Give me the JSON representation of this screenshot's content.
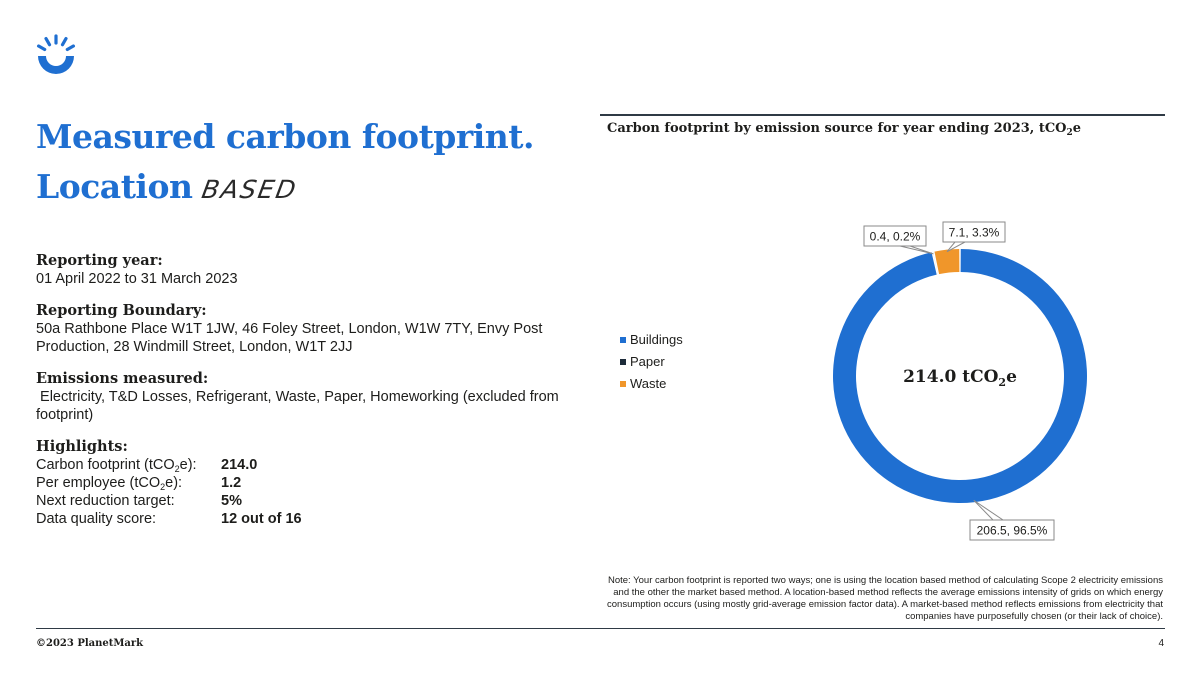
{
  "brand": {
    "accent": "#1f6fd1",
    "logo_icon": "sunrise-ring-icon"
  },
  "title": {
    "line1": "Measured carbon footprint.",
    "line2": "Location",
    "script_word": "BASED"
  },
  "reporting_year": {
    "heading": "Reporting year:",
    "value": "01 April 2022 to 31 March 2023"
  },
  "reporting_boundary": {
    "heading": "Reporting Boundary:",
    "value": "50a Rathbone Place W1T 1JW, 46 Foley Street, London, W1W 7TY, Envy Post Production, 28 Windmill Street, London, W1T 2JJ"
  },
  "emissions_measured": {
    "heading": "Emissions measured:",
    "value": " Electricity, T&D Losses, Refrigerant, Waste, Paper, Homeworking (excluded from footprint)"
  },
  "highlights": {
    "heading": "Highlights:",
    "rows": [
      {
        "label_pre": "Carbon footprint (tCO",
        "label_sub": "2",
        "label_post": "e):",
        "value": "214.0"
      },
      {
        "label_pre": "Per employee (tCO",
        "label_sub": "2",
        "label_post": "e):",
        "value": "1.2"
      },
      {
        "label_pre": "Next reduction target:",
        "label_sub": "",
        "label_post": "",
        "value": "5%"
      },
      {
        "label_pre": "Data quality score:",
        "label_sub": "",
        "label_post": "",
        "value": "12 out of 16"
      }
    ]
  },
  "chart_title": {
    "pre": "Carbon footprint by emission source for year ending 2023, tCO",
    "sub": "2",
    "post": "e"
  },
  "chart_data": {
    "type": "pie",
    "variant": "donut",
    "title": "Carbon footprint by emission source for year ending 2023, tCO2e",
    "legend_position": "left",
    "center_label": {
      "pre": "214.0 tCO",
      "sub": "2",
      "post": "e"
    },
    "categories": [
      "Buildings",
      "Paper",
      "Waste"
    ],
    "values": [
      206.5,
      0.4,
      7.1
    ],
    "percentages": [
      96.5,
      0.2,
      3.3
    ],
    "data_labels": [
      "206.5, 96.5%",
      "0.4, 0.2%",
      "7.1, 3.3%"
    ],
    "colors": [
      "#1f6fd1",
      "#1d2b3a",
      "#f0962a"
    ]
  },
  "note": "Note: Your carbon footprint is reported two ways; one is using the location based method of calculating Scope 2 electricity emissions and the other the market based method. A location-based method reflects the average emissions intensity of grids on which energy consumption occurs (using mostly grid-average emission factor data). A market-based method reflects emissions from electricity that companies have purposefully chosen (or their lack of choice).",
  "footer": {
    "copyright": "©2023 PlanetMark",
    "page_number": "4"
  }
}
